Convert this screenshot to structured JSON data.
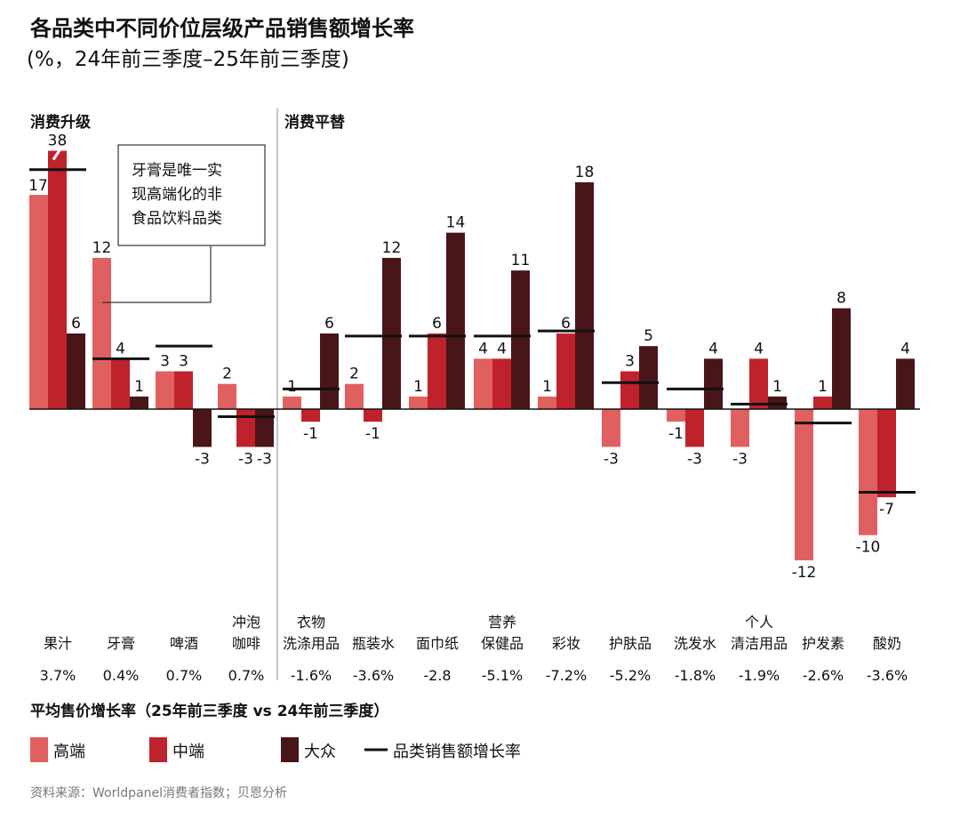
{
  "title": "各品类中不同价位层级产品销售额增长率",
  "subtitle": "(%，24年前三季度–25年前三季度)",
  "sections": {
    "upgrade": "消费升级",
    "downgrade": "消费平替"
  },
  "annotation": [
    "牙膏是唯一实",
    "现高端化的非",
    "食品饮料品类"
  ],
  "asp_title": "平均售价增长率（25年前三季度 vs 24年前三季度）",
  "source": "资料来源：Worldpanel消费者指数；贝恩分析",
  "legend": {
    "high": "高端",
    "mid": "中端",
    "mass": "大众",
    "line": "品类销售额增长率"
  },
  "colors": {
    "high": "#e0605f",
    "mid": "#c0222c",
    "mass": "#4a1518",
    "line": "#111111"
  },
  "chart_data": {
    "type": "bar",
    "title": "各品类中不同价位层级产品销售额增长率",
    "categories": [
      "果汁",
      "牙膏",
      "啤酒",
      "冲泡咖啡",
      "衣物洗涤用品",
      "瓶装水",
      "面巾纸",
      "营养保健品",
      "彩妆",
      "护肤品",
      "洗发水",
      "个人清洁用品",
      "护发素",
      "酸奶"
    ],
    "category_lines": [
      [
        "果汁"
      ],
      [
        "牙膏"
      ],
      [
        "啤酒"
      ],
      [
        "冲泡",
        "咖啡"
      ],
      [
        "衣物",
        "洗涤用品"
      ],
      [
        "瓶装水"
      ],
      [
        "面巾纸"
      ],
      [
        "营养",
        "保健品"
      ],
      [
        "彩妆"
      ],
      [
        "护肤品"
      ],
      [
        "洗发水"
      ],
      [
        "个人",
        "清洁用品"
      ],
      [
        "护发素"
      ],
      [
        "酸奶"
      ]
    ],
    "group": [
      "消费升级",
      "消费升级",
      "消费升级",
      "消费升级",
      "消费平替",
      "消费平替",
      "消费平替",
      "消费平替",
      "消费平替",
      "消费平替",
      "消费平替",
      "消费平替",
      "消费平替",
      "消费平替"
    ],
    "series": [
      {
        "name": "高端",
        "values": [
          17,
          12,
          3,
          2,
          1,
          2,
          1,
          4,
          1,
          -3,
          -1,
          -3,
          -12,
          -10
        ]
      },
      {
        "name": "中端",
        "values": [
          38,
          4,
          3,
          -3,
          -1,
          -1,
          6,
          4,
          6,
          3,
          -3,
          4,
          1,
          -7
        ]
      },
      {
        "name": "大众",
        "values": [
          6,
          1,
          -3,
          -3,
          6,
          12,
          14,
          11,
          18,
          5,
          4,
          1,
          8,
          4
        ]
      }
    ],
    "category_growth": {
      "name": "品类销售额增长率",
      "values": [
        19,
        4,
        5,
        -0.6,
        1.6,
        5.8,
        5.8,
        5.8,
        6.2,
        2.1,
        1.6,
        0.4,
        -1.1,
        -6.6
      ]
    },
    "avg_price_growth": [
      "3.7%",
      "0.4%",
      "0.7%",
      "0.7%",
      "-1.6%",
      "-3.6%",
      "-2.8",
      "-5.1%",
      "-7.2%",
      "-5.2%",
      "-1.8%",
      "-1.9%",
      "-2.6%",
      "-3.6%"
    ],
    "broken_axis_value": 38,
    "legend_position": "bottom-left",
    "grid": false
  }
}
